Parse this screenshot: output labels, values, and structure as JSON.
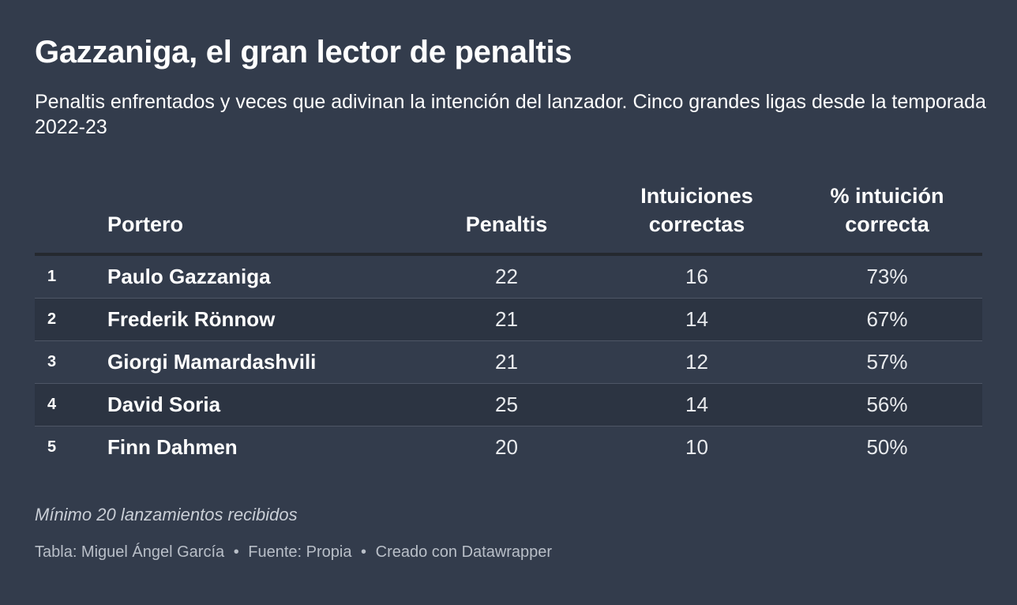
{
  "title": "Gazzaniga, el gran lector de penaltis",
  "subtitle": "Penaltis enfrentados y veces que adivinan la intención del lanzador. Cinco grandes ligas desde la temporada 2022-23",
  "note": "Mínimo 20 lanzamientos recibidos",
  "footer": {
    "author": "Tabla: Miguel Ángel García",
    "source": "Fuente: Propia",
    "tool": "Creado con Datawrapper",
    "separator": "•"
  },
  "chart_data": {
    "type": "table",
    "columns": [
      "",
      "Portero",
      "Penaltis",
      "Intuiciones correctas",
      "% intuición correcta"
    ],
    "header": {
      "rank": "",
      "name": "Portero",
      "penalties": "Penaltis",
      "correct_line1": "Intuiciones",
      "correct_line2": "correctas",
      "pct_line1": "% intuición",
      "pct_line2": "correcta"
    },
    "rows": [
      {
        "rank": "1",
        "name": "Paulo Gazzaniga",
        "penalties": "22",
        "correct": "16",
        "pct": "73%"
      },
      {
        "rank": "2",
        "name": "Frederik Rönnow",
        "penalties": "21",
        "correct": "14",
        "pct": "67%"
      },
      {
        "rank": "3",
        "name": "Giorgi Mamardashvili",
        "penalties": "21",
        "correct": "12",
        "pct": "57%"
      },
      {
        "rank": "4",
        "name": "David Soria",
        "penalties": "25",
        "correct": "14",
        "pct": "56%"
      },
      {
        "rank": "5",
        "name": "Finn Dahmen",
        "penalties": "20",
        "correct": "10",
        "pct": "50%"
      }
    ]
  },
  "colors": {
    "background": "#333c4c",
    "row_alt": "#2c3442",
    "header_rule": "#25292f",
    "text": "#ffffff"
  }
}
